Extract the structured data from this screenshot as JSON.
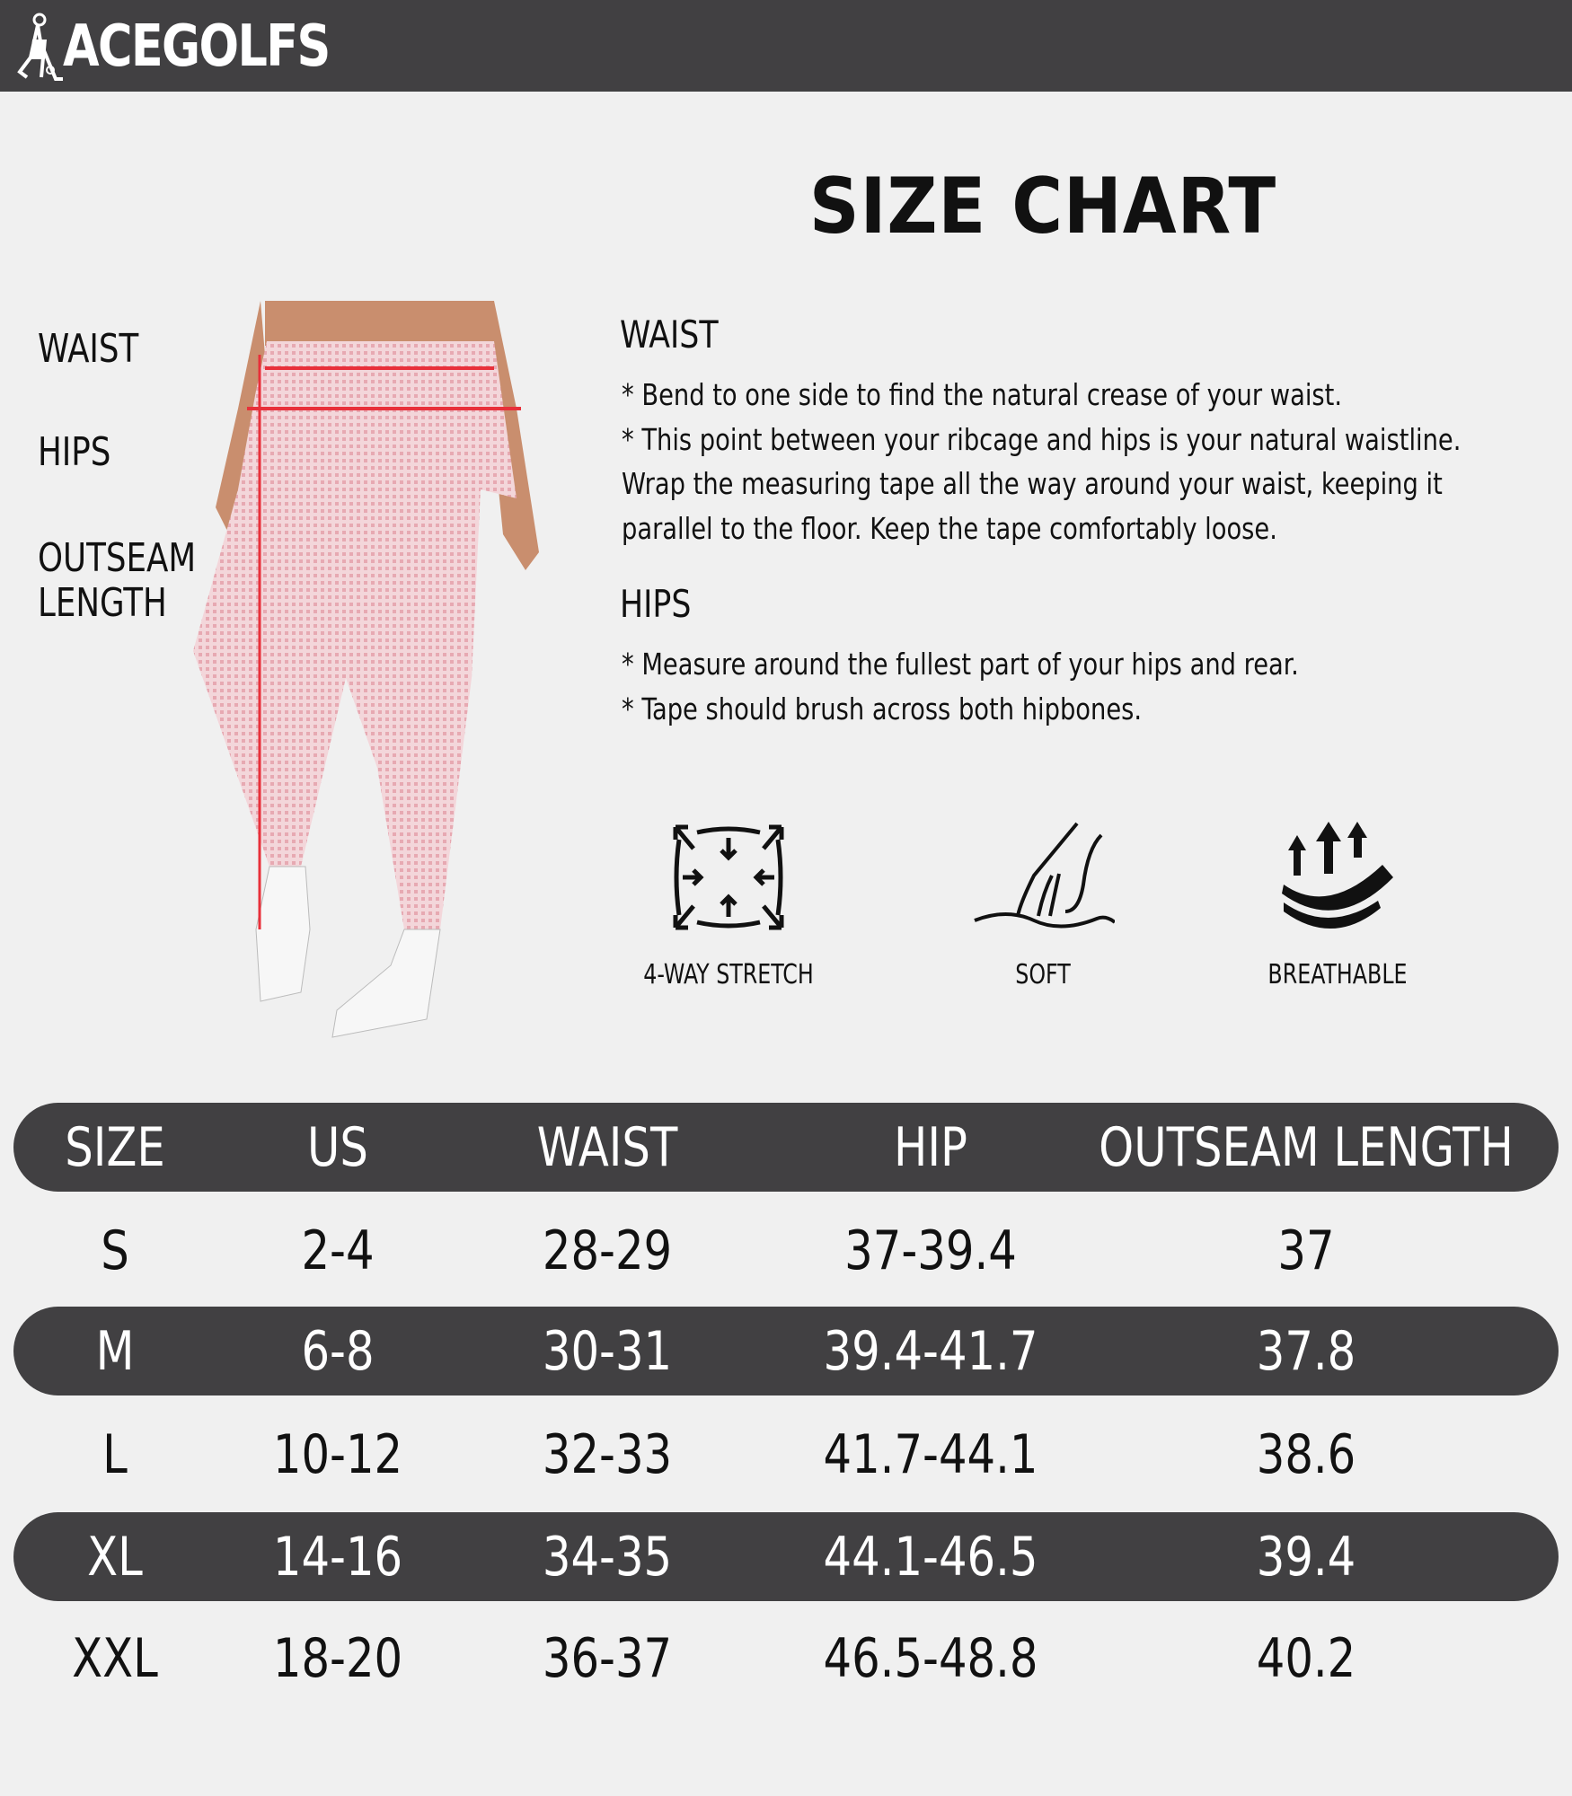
{
  "brand": {
    "logo_text": "ACEGOLFS"
  },
  "title": "SIZE CHART",
  "figure_labels": [
    "WAIST",
    "HIPS",
    "OUTSEAM",
    "LENGTH"
  ],
  "waist": {
    "heading": "WAIST",
    "lines": [
      "* Bend to one side to find the natural crease of your waist.",
      "* This point between your ribcage and hips is your natural waistline.",
      "Wrap the measuring tape all the way around your waist, keeping it",
      "parallel to the floor. Keep the tape comfortably loose."
    ]
  },
  "hips": {
    "heading": "HIPS",
    "lines": [
      "* Measure around the fullest part of your hips and rear.",
      "* Tape should brush across both hipbones."
    ]
  },
  "features": [
    {
      "icon": "stretch-icon",
      "label": "4-WAY STRETCH"
    },
    {
      "icon": "hand-icon",
      "label": "SOFT"
    },
    {
      "icon": "breathable-icon",
      "label": "BREATHABLE"
    }
  ],
  "colors": {
    "header_bg": "#414042",
    "page_bg": "#f0f0f0",
    "measure_line": "#e8303a"
  },
  "table": {
    "headers": [
      "SIZE",
      "US",
      "WAIST",
      "HIP",
      "OUTSEAM LENGTH"
    ],
    "rows": [
      [
        "S",
        "2-4",
        "28-29",
        "37-39.4",
        "37"
      ],
      [
        "M",
        "6-8",
        "30-31",
        "39.4-41.7",
        "37.8"
      ],
      [
        "L",
        "10-12",
        "32-33",
        "41.7-44.1",
        "38.6"
      ],
      [
        "XL",
        "14-16",
        "34-35",
        "44.1-46.5",
        "39.4"
      ],
      [
        "XXL",
        "18-20",
        "36-37",
        "46.5-48.8",
        "40.2"
      ]
    ]
  }
}
